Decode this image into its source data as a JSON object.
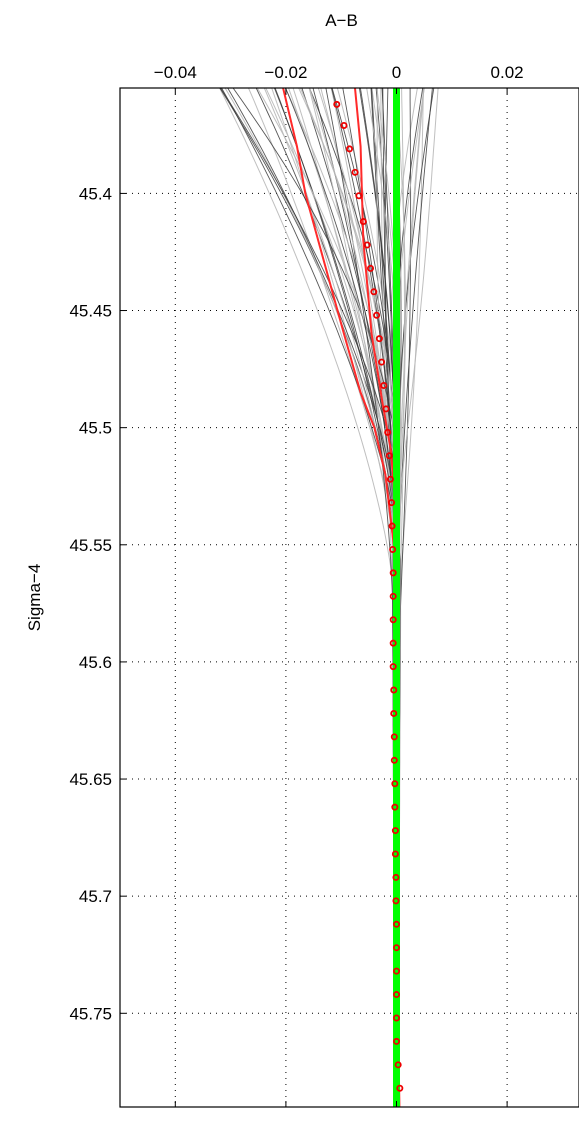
{
  "chart_data": {
    "type": "line",
    "title": "",
    "xlabel": "A−B",
    "ylabel": "Sigma−4",
    "xaxis_position": "top",
    "y_reversed": true,
    "xlim": [
      -0.05,
      0.033
    ],
    "ylim": [
      45.355,
      45.79
    ],
    "grid": true,
    "x_ticks": [
      -0.04,
      -0.02,
      0,
      0.02
    ],
    "x_tick_labels": [
      "−0.04",
      "−0.02",
      "0",
      "0.02"
    ],
    "y_ticks": [
      45.4,
      45.45,
      45.5,
      45.55,
      45.6,
      45.65,
      45.7,
      45.75
    ],
    "y_tick_labels": [
      "45.4",
      "45.45",
      "45.5",
      "45.55",
      "45.6",
      "45.65",
      "45.7",
      "45.75"
    ],
    "colors": {
      "profiles_dark": "#3a3a3a",
      "profiles_light": "#b8b8b8",
      "highlight": "#ff2a2a",
      "reference": "#00ff00",
      "mean_markers": "#ee0000"
    },
    "series": [
      {
        "style": "red-line",
        "points": [
          [
            -0.0205,
            45.355
          ],
          [
            -0.018,
            45.38
          ],
          [
            -0.0165,
            45.4
          ],
          [
            -0.013,
            45.43
          ],
          [
            -0.0095,
            45.46
          ],
          [
            -0.0065,
            45.485
          ],
          [
            -0.004,
            45.5
          ],
          [
            -0.002,
            45.52
          ],
          [
            -0.001,
            45.54
          ],
          [
            0.0,
            45.56
          ],
          [
            0.0,
            45.6
          ],
          [
            0.0,
            45.7
          ],
          [
            0.0005,
            45.79
          ]
        ]
      },
      {
        "style": "red-line",
        "points": [
          [
            -0.0075,
            45.355
          ],
          [
            -0.0065,
            45.38
          ],
          [
            -0.006,
            45.42
          ],
          [
            -0.0045,
            45.46
          ],
          [
            -0.0025,
            45.49
          ],
          [
            -0.001,
            45.51
          ],
          [
            0.0,
            45.54
          ],
          [
            0.0,
            45.6
          ],
          [
            0.0,
            45.7
          ],
          [
            0.0005,
            45.79
          ]
        ]
      },
      {
        "style": "green-reference",
        "points": [
          [
            0.0,
            45.355
          ],
          [
            0.0,
            45.45
          ],
          [
            0.0,
            45.55
          ],
          [
            0.0,
            45.65
          ],
          [
            0.0,
            45.79
          ]
        ]
      },
      {
        "style": "red-circles",
        "points": [
          [
            -0.0108,
            45.362
          ],
          [
            -0.0095,
            45.371
          ],
          [
            -0.0085,
            45.381
          ],
          [
            -0.0075,
            45.391
          ],
          [
            -0.0068,
            45.401
          ],
          [
            -0.006,
            45.412
          ],
          [
            -0.0053,
            45.422
          ],
          [
            -0.0047,
            45.432
          ],
          [
            -0.0041,
            45.442
          ],
          [
            -0.0036,
            45.452
          ],
          [
            -0.0031,
            45.462
          ],
          [
            -0.0027,
            45.472
          ],
          [
            -0.0023,
            45.482
          ],
          [
            -0.0019,
            45.492
          ],
          [
            -0.0016,
            45.502
          ],
          [
            -0.0013,
            45.512
          ],
          [
            -0.0011,
            45.522
          ],
          [
            -0.0009,
            45.532
          ],
          [
            -0.0008,
            45.542
          ],
          [
            -0.0007,
            45.552
          ],
          [
            -0.0006,
            45.562
          ],
          [
            -0.0006,
            45.572
          ],
          [
            -0.0006,
            45.582
          ],
          [
            -0.0006,
            45.592
          ],
          [
            -0.0006,
            45.602
          ],
          [
            -0.0005,
            45.612
          ],
          [
            -0.0005,
            45.622
          ],
          [
            -0.0004,
            45.632
          ],
          [
            -0.0004,
            45.642
          ],
          [
            -0.0003,
            45.652
          ],
          [
            -0.0003,
            45.662
          ],
          [
            -0.0002,
            45.672
          ],
          [
            -0.0002,
            45.682
          ],
          [
            -0.0001,
            45.692
          ],
          [
            -0.0001,
            45.702
          ],
          [
            0.0,
            45.712
          ],
          [
            0.0,
            45.722
          ],
          [
            0.0,
            45.732
          ],
          [
            0.0,
            45.742
          ],
          [
            0.0,
            45.752
          ],
          [
            0.0,
            45.762
          ],
          [
            0.0003,
            45.772
          ],
          [
            0.0006,
            45.782
          ]
        ]
      }
    ],
    "ensemble_count": 60,
    "ensemble_x_at_top_range": [
      -0.032,
      0.008
    ],
    "ensemble_converge_depth": 45.58,
    "ensemble_spread_below": 0.0015
  }
}
